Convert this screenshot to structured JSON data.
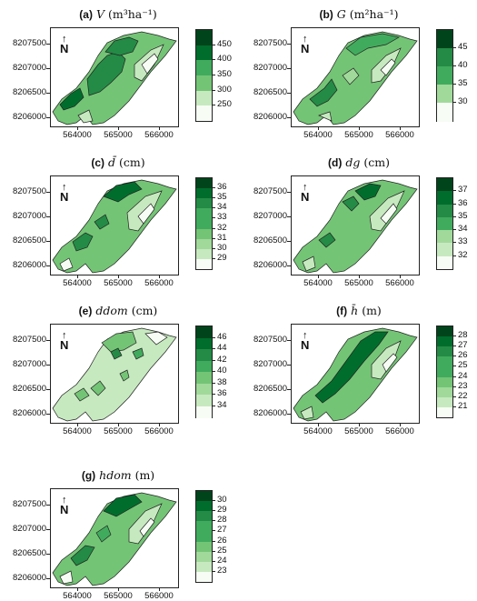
{
  "panels": [
    {
      "id": "a",
      "label": "(a)",
      "var": "V",
      "unit": "(m³ha⁻¹)",
      "legend": [
        "450",
        "400",
        "350",
        "300",
        "250"
      ],
      "pattern": "vol"
    },
    {
      "id": "b",
      "label": "(b)",
      "var": "G",
      "unit": "(m²ha⁻¹)",
      "legend": [
        "45",
        "40",
        "35",
        "30"
      ],
      "pattern": "ba"
    },
    {
      "id": "c",
      "label": "(c)",
      "var": "d̄",
      "unit": "(cm)",
      "legend": [
        "36",
        "35",
        "34",
        "33",
        "32",
        "31",
        "30",
        "29"
      ],
      "pattern": "dbar"
    },
    {
      "id": "d",
      "label": "(d)",
      "var": "dg",
      "unit": "(cm)",
      "legend": [
        "37",
        "36",
        "35",
        "34",
        "33",
        "32"
      ],
      "pattern": "dg"
    },
    {
      "id": "e",
      "label": "(e)",
      "var": "ddom",
      "unit": "(cm)",
      "legend": [
        "46",
        "44",
        "42",
        "40",
        "38",
        "36",
        "34"
      ],
      "pattern": "ddom"
    },
    {
      "id": "f",
      "label": "(f)",
      "var": "h̄",
      "unit": "(m)",
      "legend": [
        "28",
        "27",
        "26",
        "25",
        "24",
        "23",
        "22",
        "21"
      ],
      "pattern": "hbar"
    },
    {
      "id": "g",
      "label": "(g)",
      "var": "hdom",
      "unit": "(m)",
      "legend": [
        "30",
        "29",
        "28",
        "27",
        "26",
        "25",
        "24",
        "23"
      ],
      "pattern": "hdom"
    }
  ],
  "axes": {
    "y_ticks": [
      "8207500",
      "8207000",
      "8206500",
      "8206000"
    ],
    "x_ticks": [
      "564000",
      "565000",
      "566000"
    ]
  },
  "north_label": "N",
  "colors": {
    "ramp": [
      "#f7fcf5",
      "#c7e9c0",
      "#a1d99b",
      "#74c476",
      "#41ab5d",
      "#238b45",
      "#006d2c",
      "#00441b"
    ],
    "outline": "#222222"
  }
}
